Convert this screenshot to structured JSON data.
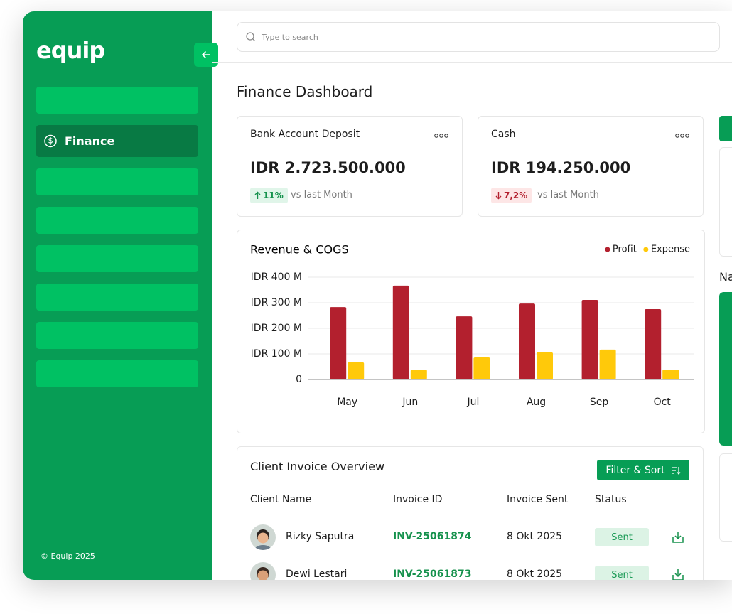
{
  "sidebar": {
    "logo": "equip",
    "active_item": "Finance",
    "footer": "© Equip 2025"
  },
  "search": {
    "placeholder": "Type to search"
  },
  "page_title": "Finance Dashboard",
  "cards": [
    {
      "title": "Bank Account Deposit",
      "amount": "IDR 2.723.500.000",
      "change": "11%",
      "change_note": "vs last Month"
    },
    {
      "title": "Cash",
      "amount": "IDR 194.250.000",
      "change": "7,2%",
      "change_note": "vs last Month"
    }
  ],
  "chart_data": {
    "type": "bar",
    "title": "Revenue & COGS",
    "categories": [
      "May",
      "Jun",
      "Jul",
      "Aug",
      "Sep",
      "Oct"
    ],
    "series": [
      {
        "name": "Profit",
        "color": "#b3202e",
        "values": [
          283,
          367,
          247,
          297,
          311,
          275
        ]
      },
      {
        "name": "Expense",
        "color": "#ffc90a",
        "values": [
          67,
          39,
          86,
          106,
          117,
          39
        ]
      }
    ],
    "ylim": [
      0,
      400
    ],
    "yticks": [
      0,
      {
        "value": 100,
        "label": "IDR 100 M"
      },
      {
        "value": 200,
        "label": "IDR 200 M"
      },
      {
        "value": 300,
        "label": "IDR 300 M"
      },
      {
        "value": 400,
        "label": "IDR 400 M"
      }
    ],
    "grid": true,
    "legend": "top-right"
  },
  "invoices": {
    "title": "Client Invoice Overview",
    "button": "Filter & Sort",
    "columns": [
      "Client Name",
      "Invoice ID",
      "Invoice Sent",
      "Status"
    ],
    "rows": [
      [
        "Rizky Saputra",
        "INV-25061874",
        "8 Okt 2025",
        "Sent"
      ],
      [
        "Dewi Lestari",
        "INV-25061873",
        "8 Okt 2025",
        "Sent"
      ]
    ]
  },
  "right_panel": {
    "heading": "Na"
  }
}
